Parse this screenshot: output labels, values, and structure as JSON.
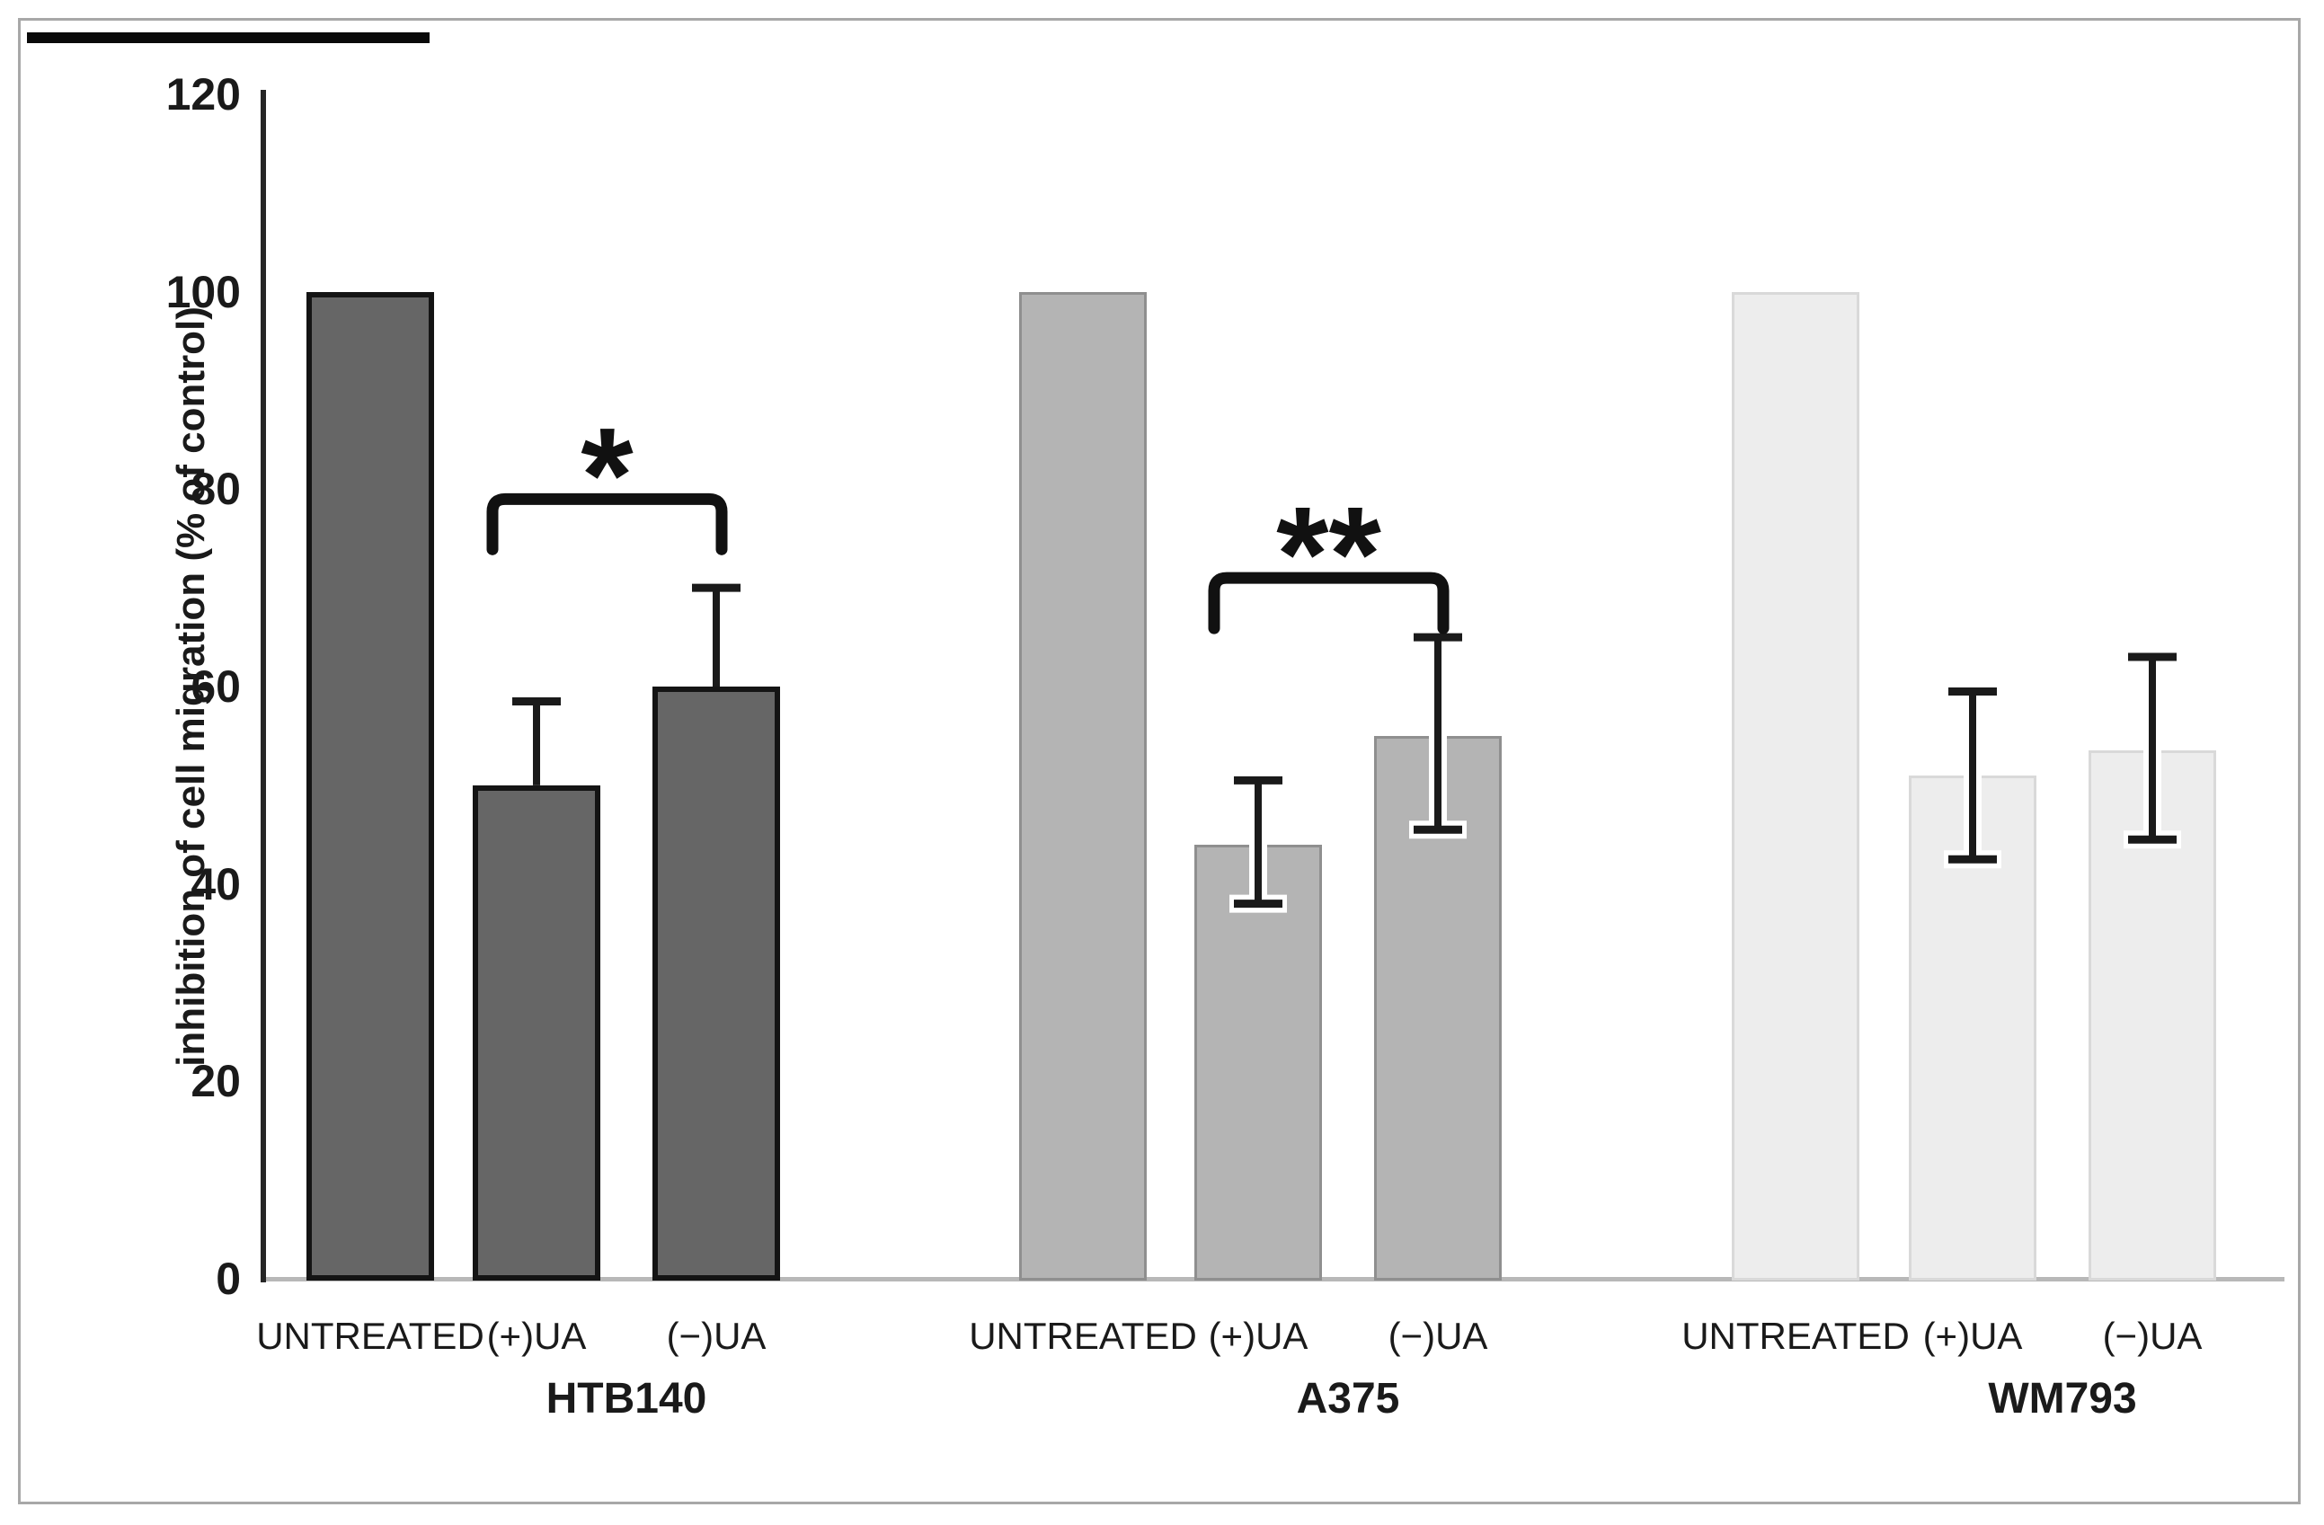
{
  "chart_data": {
    "type": "bar",
    "title": "",
    "xlabel": "",
    "ylabel": "inhibition of cell migration (% of control)",
    "ylim": [
      0,
      120
    ],
    "yticks": [
      0,
      20,
      40,
      60,
      80,
      100,
      120
    ],
    "grid": false,
    "legend": null,
    "groups": [
      {
        "name": "HTB140",
        "fill": "#666666",
        "border": "#141414",
        "border_width": 6,
        "bars": [
          {
            "label": "UNTREATED",
            "value": 100,
            "err_low": null,
            "err_high": null
          },
          {
            "label": "(+)UA",
            "value": 50,
            "err_low": null,
            "err_high": 58.5
          },
          {
            "label": "(−)UA",
            "value": 60,
            "err_low": null,
            "err_high": 70
          }
        ],
        "significance": {
          "label": "*",
          "from": 1,
          "to": 2,
          "bracket_top_value": 79
        }
      },
      {
        "name": "A375",
        "fill": "#b4b4b4",
        "border": "#8f8f8f",
        "border_width": 3,
        "bars": [
          {
            "label": "UNTREATED",
            "value": 100,
            "err_low": null,
            "err_high": null
          },
          {
            "label": "(+)UA",
            "value": 44,
            "err_low": 38,
            "err_high": 50.5
          },
          {
            "label": "(−)UA",
            "value": 55,
            "err_low": 45.5,
            "err_high": 65
          }
        ],
        "significance": {
          "label": "**",
          "from": 1,
          "to": 2,
          "bracket_top_value": 71
        }
      },
      {
        "name": "WM793",
        "fill": "#ededed",
        "border": "#d9d9d9",
        "border_width": 3,
        "bars": [
          {
            "label": "UNTREATED",
            "value": 100,
            "err_low": null,
            "err_high": null
          },
          {
            "label": "(+)UA",
            "value": 51,
            "err_low": 42.5,
            "err_high": 59.5
          },
          {
            "label": "(−)UA",
            "value": 53.5,
            "err_low": 44.5,
            "err_high": 63
          }
        ],
        "significance": null
      }
    ],
    "colors": {
      "axis": "#262626",
      "baseline": "#b8b8b8",
      "error_bar": "#1a1a1a",
      "bracket": "#111111",
      "text": "#1a1a1a",
      "frame": "#a8a8a8"
    }
  }
}
